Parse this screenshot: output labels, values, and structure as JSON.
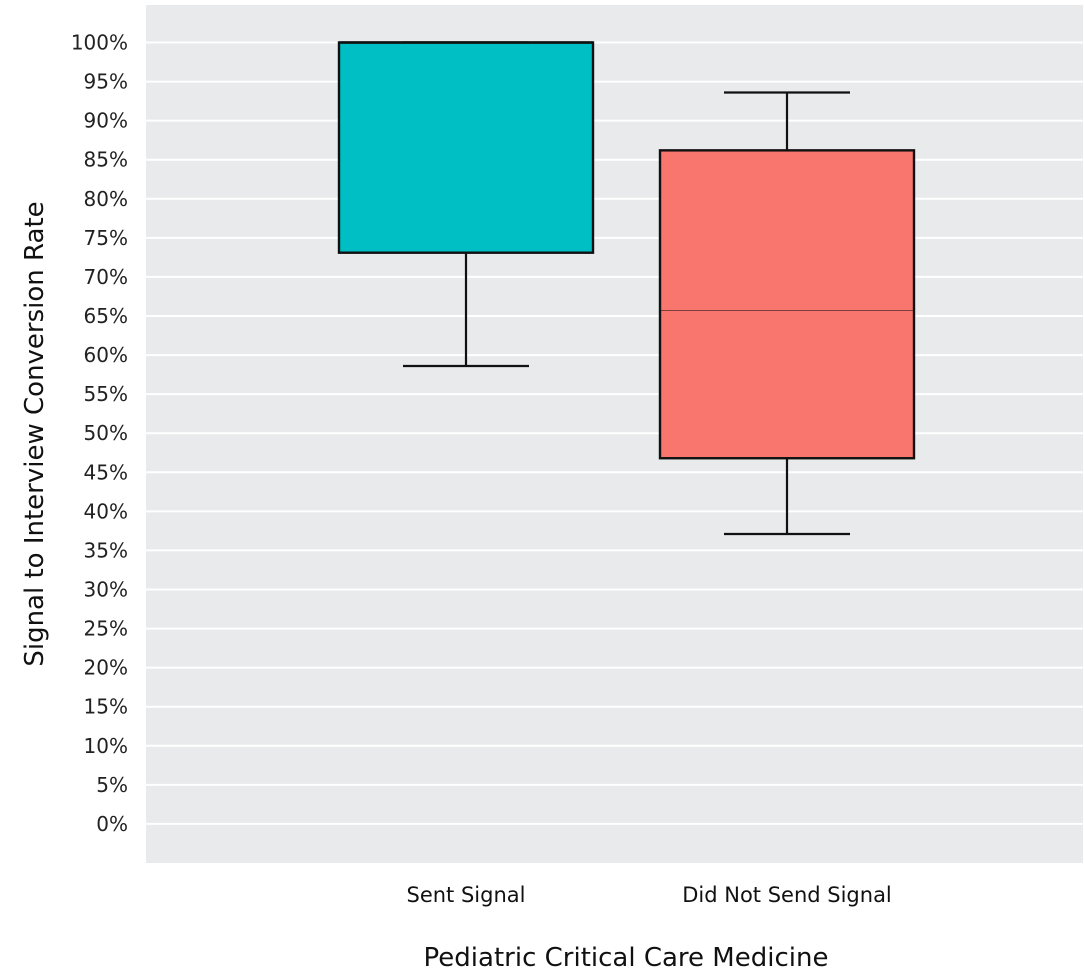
{
  "chart_data": {
    "type": "box",
    "xlabel": "Pediatric Critical Care Medicine",
    "ylabel": "Signal to Interview Conversion Rate",
    "ylim": [
      -5,
      104.8
    ],
    "yticks": [
      0,
      5,
      10,
      15,
      20,
      25,
      30,
      35,
      40,
      45,
      50,
      55,
      60,
      65,
      70,
      75,
      80,
      85,
      90,
      95,
      100
    ],
    "ytick_labels": [
      "0%",
      "5%",
      "10%",
      "15%",
      "20%",
      "25%",
      "30%",
      "35%",
      "40%",
      "45%",
      "50%",
      "55%",
      "60%",
      "65%",
      "70%",
      "75%",
      "80%",
      "85%",
      "90%",
      "95%",
      "100%"
    ],
    "grid": true,
    "legend": "none",
    "categories": [
      "Sent Signal",
      "Did Not Send Signal"
    ],
    "boxes": [
      {
        "category": "Sent Signal",
        "min": 58.6,
        "q1": 73.1,
        "median": 100,
        "q3": 100,
        "max": 100,
        "color": "#00BFC4"
      },
      {
        "category": "Did Not Send Signal",
        "min": 37.1,
        "q1": 46.8,
        "median": 65.7,
        "q3": 86.2,
        "max": 93.6,
        "color": "#F8766D"
      }
    ]
  },
  "colors": {
    "panel_background": "#E8EAEB",
    "gridline": "#FFFFFF",
    "box_stroke": "#111111"
  }
}
